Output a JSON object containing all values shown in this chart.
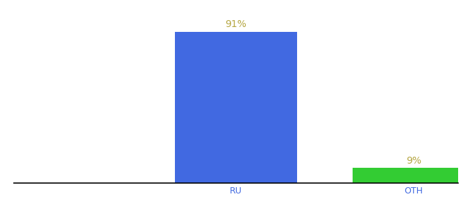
{
  "categories": [
    "RU",
    "OTH"
  ],
  "values": [
    91,
    9
  ],
  "bar_colors": [
    "#4169e1",
    "#33cc33"
  ],
  "label_texts": [
    "91%",
    "9%"
  ],
  "ylim": [
    0,
    100
  ],
  "background_color": "#ffffff",
  "label_color": "#b5a642",
  "tick_color": "#4169e1",
  "bar_width": 0.55,
  "xlim": [
    -0.5,
    1.5
  ]
}
